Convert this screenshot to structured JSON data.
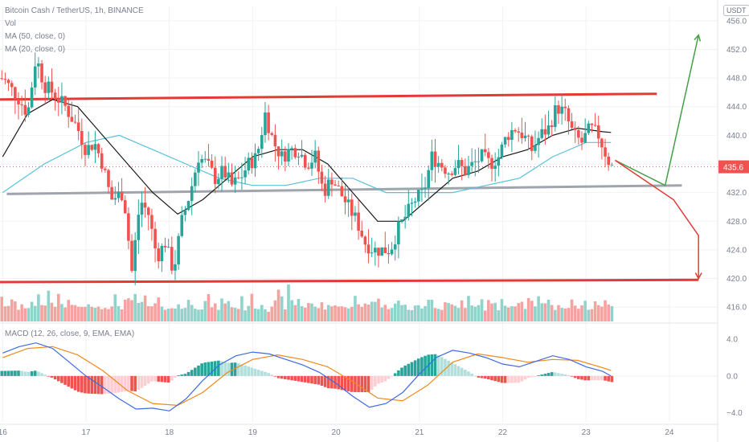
{
  "legend": {
    "symbol": "Bitcoin Cash / TetherUS, 1h, BINANCE",
    "vol": "Vol",
    "ma50": "MA (50, close, 0)",
    "ma20": "MA (20, close, 0)"
  },
  "macd_legend": "MACD (12, 26, close, 9, EMA, EMA)",
  "currency": "USDT",
  "colors": {
    "up": "#26a69a",
    "down": "#ef5350",
    "up_vol": "#8fd3cb",
    "down_vol": "#f4a3a1",
    "resistance": "#e53935",
    "support_gray": "#a0a4ac",
    "ma20": "#1a1a1a",
    "ma50": "#5bc0d8",
    "bull_arrow": "#43a047",
    "bear_arrow": "#e53935",
    "macd_line": "#3f6ae0",
    "signal_line": "#ef8a1e",
    "price_tag": "#ef5350"
  },
  "chart_data": {
    "type": "candlestick",
    "price_axis": {
      "ticks": [
        456.0,
        452.0,
        448.0,
        444.0,
        440.0,
        436.0,
        432.0,
        428.0,
        424.0,
        420.0,
        416.0
      ],
      "labels": [
        "456.0",
        "452.0",
        "448.0",
        "444.0",
        "440.0",
        "436.0",
        "432.0",
        "428.0",
        "424.0",
        "420.0",
        "416.0"
      ],
      "range": [
        414.0,
        458.0
      ]
    },
    "macd_axis": {
      "ticks": [
        4.0,
        0.0,
        -4.0
      ],
      "labels": [
        "4.0",
        "0.0",
        "−4.0"
      ],
      "range": [
        -5.0,
        5.5
      ]
    },
    "time_axis": {
      "labels": [
        "16",
        "17",
        "18",
        "19",
        "20",
        "21",
        "22",
        "23",
        "24"
      ],
      "day_index": [
        16,
        17,
        18,
        19,
        20,
        21,
        22,
        23,
        24
      ]
    },
    "last_price": 435.6,
    "last_price_label": "435.6",
    "price_path": [
      [
        16.0,
        448
      ],
      [
        16.2,
        445
      ],
      [
        16.3,
        443
      ],
      [
        16.4,
        451
      ],
      [
        16.5,
        447
      ],
      [
        16.6,
        446
      ],
      [
        16.75,
        444
      ],
      [
        16.9,
        441
      ],
      [
        17.0,
        438
      ],
      [
        17.1,
        439
      ],
      [
        17.2,
        436
      ],
      [
        17.3,
        431
      ],
      [
        17.45,
        432
      ],
      [
        17.55,
        421
      ],
      [
        17.65,
        431
      ],
      [
        17.75,
        429
      ],
      [
        17.85,
        423
      ],
      [
        17.95,
        425
      ],
      [
        18.05,
        421
      ],
      [
        18.15,
        428
      ],
      [
        18.25,
        432
      ],
      [
        18.35,
        437
      ],
      [
        18.45,
        436
      ],
      [
        18.55,
        434
      ],
      [
        18.65,
        435
      ],
      [
        18.75,
        433
      ],
      [
        18.85,
        434
      ],
      [
        18.95,
        436
      ],
      [
        19.05,
        437
      ],
      [
        19.15,
        443
      ],
      [
        19.25,
        439
      ],
      [
        19.35,
        437
      ],
      [
        19.45,
        438
      ],
      [
        19.55,
        438
      ],
      [
        19.65,
        436
      ],
      [
        19.75,
        437
      ],
      [
        19.85,
        432
      ],
      [
        19.95,
        434
      ],
      [
        20.05,
        432
      ],
      [
        20.15,
        430
      ],
      [
        20.25,
        428
      ],
      [
        20.35,
        425
      ],
      [
        20.45,
        424
      ],
      [
        20.55,
        424
      ],
      [
        20.65,
        424
      ],
      [
        20.75,
        427
      ],
      [
        20.85,
        429
      ],
      [
        20.95,
        431
      ],
      [
        21.05,
        432
      ],
      [
        21.15,
        437
      ],
      [
        21.25,
        436
      ],
      [
        21.35,
        435
      ],
      [
        21.45,
        436
      ],
      [
        21.55,
        435
      ],
      [
        21.65,
        436
      ],
      [
        21.75,
        437
      ],
      [
        21.85,
        436
      ],
      [
        21.95,
        437
      ],
      [
        22.05,
        440
      ],
      [
        22.15,
        441
      ],
      [
        22.25,
        440
      ],
      [
        22.35,
        438
      ],
      [
        22.45,
        440
      ],
      [
        22.55,
        441
      ],
      [
        22.65,
        444
      ],
      [
        22.75,
        443
      ],
      [
        22.85,
        440
      ],
      [
        22.95,
        439
      ],
      [
        23.05,
        441
      ],
      [
        23.15,
        440
      ],
      [
        23.25,
        437
      ],
      [
        23.3,
        435.6
      ]
    ],
    "volume_relative": [
      0.35,
      0.55,
      0.3,
      0.45,
      0.6,
      0.4,
      0.3,
      0.5,
      0.35,
      0.25,
      0.4,
      0.45,
      0.7,
      0.55,
      0.35,
      0.9,
      0.5,
      0.45,
      0.6,
      0.4,
      0.35,
      0.5,
      0.45,
      0.3,
      0.35,
      0.4,
      0.3,
      0.35,
      0.5,
      0.4,
      0.35,
      0.3,
      0.45,
      0.35,
      0.3,
      0.6,
      0.4,
      0.35,
      0.55,
      0.5,
      0.45,
      0.7,
      0.5,
      0.4,
      0.6,
      0.35,
      0.3,
      0.4,
      0.5,
      0.45,
      0.35,
      0.3,
      0.25,
      0.3,
      0.45,
      0.35,
      0.3,
      0.5,
      0.55,
      0.4,
      0.35,
      0.3,
      0.5,
      0.6,
      0.4,
      0.35,
      0.3,
      0.55,
      0.4,
      0.6,
      0.35,
      0.3
    ],
    "macd_path": [
      [
        16.0,
        2.5
      ],
      [
        16.2,
        3.2
      ],
      [
        16.4,
        3.6
      ],
      [
        16.6,
        3.0
      ],
      [
        16.8,
        1.5
      ],
      [
        17.0,
        0.0
      ],
      [
        17.2,
        -1.2
      ],
      [
        17.4,
        -2.5
      ],
      [
        17.6,
        -3.6
      ],
      [
        17.8,
        -3.5
      ],
      [
        18.0,
        -3.8
      ],
      [
        18.2,
        -2.5
      ],
      [
        18.4,
        -0.5
      ],
      [
        18.6,
        1.2
      ],
      [
        18.8,
        2.2
      ],
      [
        19.0,
        2.6
      ],
      [
        19.2,
        2.4
      ],
      [
        19.4,
        1.8
      ],
      [
        19.6,
        1.2
      ],
      [
        19.8,
        0.4
      ],
      [
        20.0,
        -0.8
      ],
      [
        20.2,
        -2.2
      ],
      [
        20.4,
        -3.4
      ],
      [
        20.6,
        -3.0
      ],
      [
        20.8,
        -1.8
      ],
      [
        21.0,
        0.2
      ],
      [
        21.2,
        2.0
      ],
      [
        21.4,
        2.8
      ],
      [
        21.6,
        2.5
      ],
      [
        21.8,
        2.0
      ],
      [
        22.0,
        1.3
      ],
      [
        22.2,
        1.0
      ],
      [
        22.4,
        1.6
      ],
      [
        22.6,
        2.2
      ],
      [
        22.8,
        1.8
      ],
      [
        23.0,
        1.0
      ],
      [
        23.2,
        0.5
      ],
      [
        23.3,
        0.0
      ]
    ],
    "signal_path": [
      [
        16.0,
        2.0
      ],
      [
        16.3,
        3.0
      ],
      [
        16.6,
        3.2
      ],
      [
        16.9,
        2.3
      ],
      [
        17.2,
        0.6
      ],
      [
        17.5,
        -1.6
      ],
      [
        17.8,
        -3.0
      ],
      [
        18.1,
        -3.2
      ],
      [
        18.4,
        -1.8
      ],
      [
        18.7,
        0.4
      ],
      [
        19.0,
        1.8
      ],
      [
        19.3,
        2.3
      ],
      [
        19.6,
        1.8
      ],
      [
        19.9,
        1.0
      ],
      [
        20.2,
        -0.6
      ],
      [
        20.5,
        -2.4
      ],
      [
        20.8,
        -2.7
      ],
      [
        21.1,
        -1.0
      ],
      [
        21.4,
        1.5
      ],
      [
        21.7,
        2.4
      ],
      [
        22.0,
        2.0
      ],
      [
        22.3,
        1.5
      ],
      [
        22.6,
        1.8
      ],
      [
        22.9,
        1.7
      ],
      [
        23.2,
        0.9
      ],
      [
        23.3,
        0.6
      ]
    ],
    "ma20_path": [
      [
        16.0,
        437
      ],
      [
        16.3,
        443
      ],
      [
        16.6,
        445
      ],
      [
        16.9,
        444
      ],
      [
        17.2,
        440
      ],
      [
        17.5,
        436
      ],
      [
        17.8,
        432
      ],
      [
        18.1,
        429
      ],
      [
        18.4,
        431
      ],
      [
        18.7,
        434
      ],
      [
        19.0,
        437
      ],
      [
        19.3,
        438
      ],
      [
        19.6,
        438
      ],
      [
        19.9,
        436
      ],
      [
        20.2,
        432
      ],
      [
        20.5,
        428
      ],
      [
        20.8,
        428
      ],
      [
        21.1,
        431
      ],
      [
        21.4,
        434
      ],
      [
        21.7,
        435
      ],
      [
        22.0,
        437
      ],
      [
        22.3,
        438
      ],
      [
        22.6,
        440
      ],
      [
        22.9,
        441
      ],
      [
        23.2,
        440.5
      ],
      [
        23.3,
        440.4
      ]
    ],
    "ma50_path": [
      [
        16.0,
        432
      ],
      [
        16.5,
        436
      ],
      [
        17.0,
        439
      ],
      [
        17.4,
        440
      ],
      [
        17.8,
        438
      ],
      [
        18.2,
        436
      ],
      [
        18.6,
        434
      ],
      [
        19.0,
        433
      ],
      [
        19.4,
        433
      ],
      [
        19.8,
        434
      ],
      [
        20.2,
        434
      ],
      [
        20.6,
        432
      ],
      [
        21.0,
        432
      ],
      [
        21.4,
        432
      ],
      [
        21.8,
        433
      ],
      [
        22.2,
        434
      ],
      [
        22.6,
        437
      ],
      [
        23.0,
        439
      ],
      [
        23.3,
        439
      ]
    ],
    "annotations": {
      "resistance_line": [
        [
          15.9,
          445.0
        ],
        [
          23.85,
          445.8
        ]
      ],
      "support_line_bottom": [
        [
          15.9,
          419.5
        ],
        [
          24.35,
          419.8
        ]
      ],
      "gray_line": [
        [
          16.05,
          431.8
        ],
        [
          24.15,
          433.0
        ]
      ],
      "bull_arrow": [
        [
          23.35,
          436.5
        ],
        [
          23.95,
          433.0
        ],
        [
          24.35,
          454.0
        ]
      ],
      "bear_arrow": [
        [
          23.35,
          436.5
        ],
        [
          24.05,
          431.0
        ],
        [
          24.35,
          426.0
        ],
        [
          24.35,
          420.0
        ]
      ]
    }
  }
}
